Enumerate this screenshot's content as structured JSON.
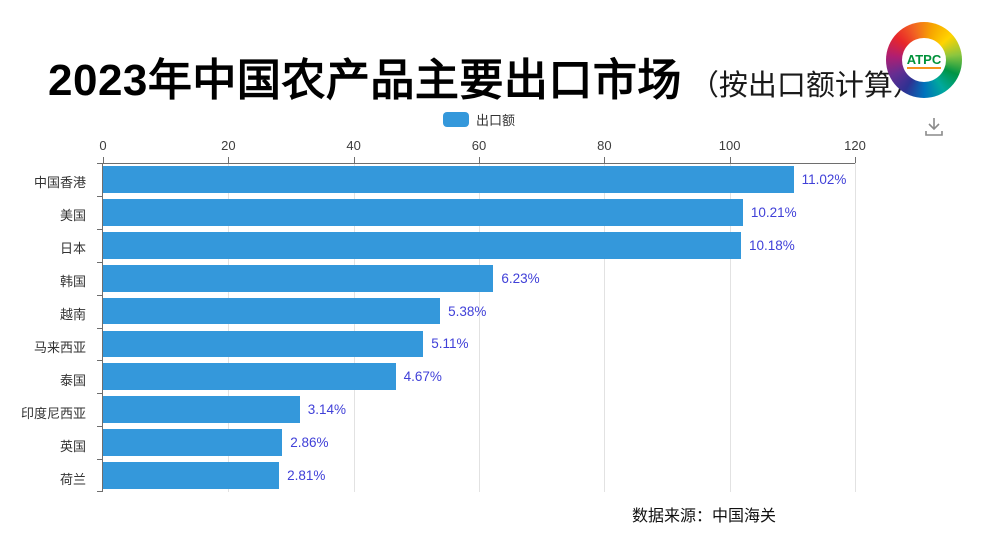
{
  "header": {
    "title": "2023年中国农产品主要出口市场",
    "subtitle": "（按出口额计算）",
    "logo_text": "ATPC"
  },
  "icons": {
    "download": "arrow-down-into-tray"
  },
  "legend": {
    "items": [
      {
        "label": "出口额",
        "color": "#3498db"
      }
    ]
  },
  "chart_data": {
    "type": "bar",
    "orientation": "horizontal",
    "title": "2023年中国农产品主要出口市场（按出口额计算）",
    "legend_entries": [
      "出口额"
    ],
    "legend_position": "top-center",
    "categories": [
      "中国香港",
      "美国",
      "日本",
      "韩国",
      "越南",
      "马来西亚",
      "泰国",
      "印度尼西亚",
      "英国",
      "荷兰"
    ],
    "series": [
      {
        "name": "出口额",
        "values_percent": [
          11.02,
          10.21,
          10.18,
          6.23,
          5.38,
          5.11,
          4.67,
          3.14,
          2.86,
          2.81
        ],
        "bar_lengths_axis_units": [
          110.2,
          102.1,
          101.8,
          62.3,
          53.8,
          51.1,
          46.7,
          31.4,
          28.6,
          28.1
        ],
        "data_labels": [
          "11.02%",
          "10.21%",
          "10.18%",
          "6.23%",
          "5.38%",
          "5.11%",
          "4.67%",
          "3.14%",
          "2.86%",
          "2.81%"
        ]
      }
    ],
    "xlim": [
      0,
      120
    ],
    "x_ticks": [
      0,
      20,
      40,
      60,
      80,
      100,
      120
    ],
    "grid": true,
    "bar_color": "#3498db",
    "data_label_color": "#4040d8"
  },
  "footer": {
    "source": "数据来源：中国海关"
  }
}
